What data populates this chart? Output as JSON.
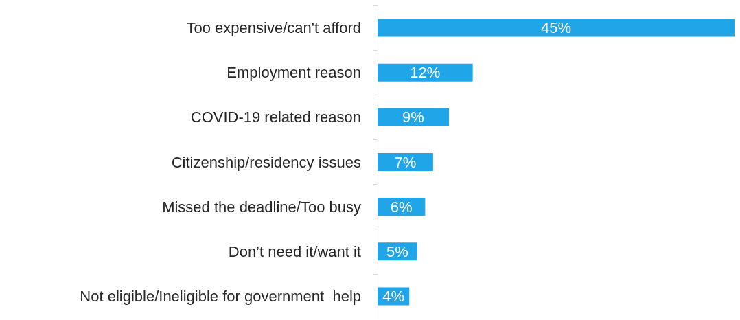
{
  "chart_data": {
    "type": "bar",
    "orientation": "horizontal",
    "categories": [
      "Too expensive/can't afford",
      "Employment reason",
      "COVID-19 related reason",
      "Citizenship/residency issues",
      "Missed the deadline/Too busy",
      "Don’t need it/want it",
      "Not eligible/Ineligible for government  help"
    ],
    "values": [
      45,
      12,
      9,
      7,
      6,
      5,
      4
    ],
    "value_labels": [
      "45%",
      "12%",
      "9%",
      "7%",
      "6%",
      "5%",
      "4%"
    ],
    "color": "#1fa5e8"
  }
}
